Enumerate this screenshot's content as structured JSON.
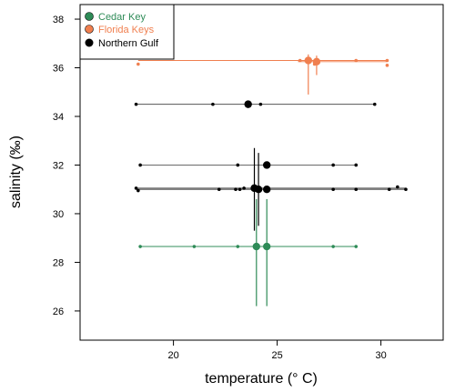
{
  "chart_data": {
    "type": "scatter",
    "xlabel": "temperature (° C)",
    "ylabel": "salinity (‰)",
    "xlim": [
      15.5,
      33.0
    ],
    "ylim": [
      24.8,
      38.6
    ],
    "x_ticks": [
      20,
      25,
      30
    ],
    "y_ticks": [
      26,
      28,
      30,
      32,
      34,
      36,
      38
    ],
    "grid": false,
    "legend_position": "top-left",
    "series": [
      {
        "name": "Cedar Key",
        "color": "#2e8b57",
        "points": [
          {
            "x": 24.0,
            "y": 28.65,
            "xmin": 18.4,
            "xmax": 28.8,
            "ymin": 26.2,
            "ymax": 30.6
          },
          {
            "x": 24.5,
            "y": 28.65,
            "xmin": 18.4,
            "xmax": 28.8,
            "ymin": 26.2,
            "ymax": 30.6
          }
        ],
        "observations": [
          {
            "x": 18.4,
            "y": 28.65
          },
          {
            "x": 21.0,
            "y": 28.65
          },
          {
            "x": 23.1,
            "y": 28.65
          },
          {
            "x": 27.7,
            "y": 28.65
          },
          {
            "x": 28.8,
            "y": 28.65
          }
        ]
      },
      {
        "name": "Florida Keys",
        "color": "#f07f4f",
        "points": [
          {
            "x": 26.5,
            "y": 36.3,
            "xmin": 18.3,
            "xmax": 30.3,
            "ymin": 34.9,
            "ymax": 36.55
          },
          {
            "x": 26.9,
            "y": 36.25,
            "xmin": 26.0,
            "xmax": 30.3,
            "ymin": 35.7,
            "ymax": 36.5
          }
        ],
        "observations": [
          {
            "x": 18.3,
            "y": 36.15
          },
          {
            "x": 26.1,
            "y": 36.3
          },
          {
            "x": 28.8,
            "y": 36.3
          },
          {
            "x": 30.3,
            "y": 36.3
          },
          {
            "x": 30.3,
            "y": 36.1
          },
          {
            "x": 26.8,
            "y": 36.15
          }
        ]
      },
      {
        "name": "Northern Gulf",
        "color": "#000000",
        "points": [
          {
            "x": 23.6,
            "y": 34.5,
            "xmin": 18.2,
            "xmax": 29.7,
            "ymin": 34.5,
            "ymax": 34.5
          },
          {
            "x": 24.5,
            "y": 32.0,
            "xmin": 18.4,
            "xmax": 28.8,
            "ymin": 32.0,
            "ymax": 32.0
          },
          {
            "x": 23.9,
            "y": 31.05,
            "xmin": 18.2,
            "xmax": 31.2,
            "ymin": 29.3,
            "ymax": 32.7
          },
          {
            "x": 24.1,
            "y": 31.0,
            "xmin": 18.2,
            "xmax": 31.2,
            "ymin": 29.5,
            "ymax": 32.5
          },
          {
            "x": 24.5,
            "y": 31.0,
            "xmin": 18.2,
            "xmax": 31.2,
            "ymin": 31.0,
            "ymax": 31.0
          }
        ],
        "observations": [
          {
            "x": 18.2,
            "y": 34.5
          },
          {
            "x": 21.9,
            "y": 34.5
          },
          {
            "x": 24.2,
            "y": 34.5
          },
          {
            "x": 29.7,
            "y": 34.5
          },
          {
            "x": 18.4,
            "y": 32.0
          },
          {
            "x": 23.1,
            "y": 32.0
          },
          {
            "x": 27.7,
            "y": 32.0
          },
          {
            "x": 28.8,
            "y": 32.0
          },
          {
            "x": 18.2,
            "y": 31.05
          },
          {
            "x": 18.3,
            "y": 30.95
          },
          {
            "x": 22.2,
            "y": 31.0
          },
          {
            "x": 23.0,
            "y": 31.0
          },
          {
            "x": 23.2,
            "y": 31.0
          },
          {
            "x": 23.4,
            "y": 31.05
          },
          {
            "x": 27.7,
            "y": 31.0
          },
          {
            "x": 28.8,
            "y": 31.0
          },
          {
            "x": 30.4,
            "y": 31.0
          },
          {
            "x": 30.8,
            "y": 31.1
          },
          {
            "x": 31.2,
            "y": 31.0
          }
        ]
      }
    ]
  }
}
